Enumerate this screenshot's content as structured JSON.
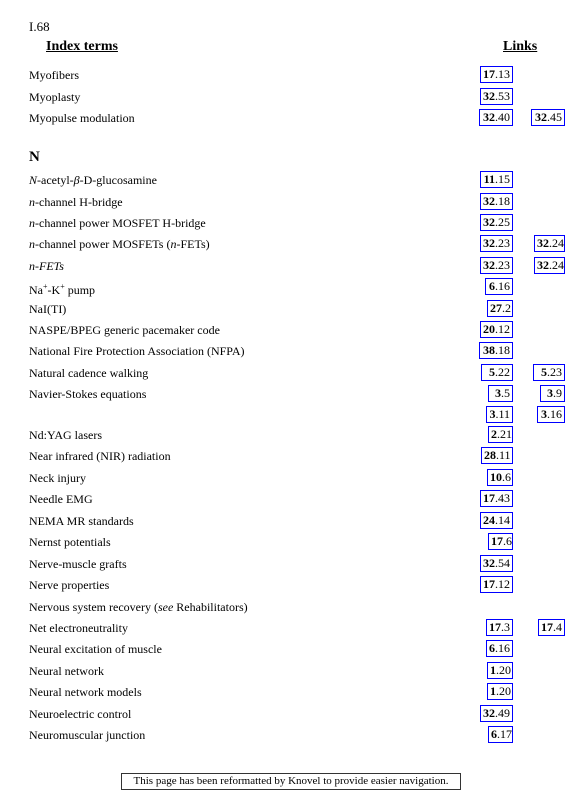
{
  "page_number": "I.68",
  "header": {
    "terms": "Index terms",
    "links": "Links"
  },
  "section": "N",
  "entries": [
    {
      "term": "Myofibers",
      "links": [
        [
          "17",
          ".13"
        ]
      ]
    },
    {
      "term": "Myoplasty",
      "links": [
        [
          "32",
          ".53"
        ]
      ]
    },
    {
      "term": "Myopulse modulation",
      "links": [
        [
          "32",
          ".40"
        ],
        [
          "32",
          ".45"
        ]
      ]
    },
    {
      "term": "N-acetyl-β-D-glucosamine",
      "links": [
        [
          "11",
          ".15"
        ]
      ]
    },
    {
      "term": "n-channel H-bridge",
      "links": [
        [
          "32",
          ".18"
        ]
      ]
    },
    {
      "term": "n-channel power MOSFET H-bridge",
      "links": [
        [
          "32",
          ".25"
        ]
      ]
    },
    {
      "term": "n-channel power MOSFETs (n-FETs)",
      "links": [
        [
          "32",
          ".23"
        ],
        [
          "32",
          ".24"
        ]
      ]
    },
    {
      "term": "n-FETs",
      "links": [
        [
          "32",
          ".23"
        ],
        [
          "32",
          ".24"
        ]
      ]
    },
    {
      "term": "Na+-K+ pump",
      "links": [
        [
          "6",
          ".16"
        ]
      ]
    },
    {
      "term": "NaI(TI)",
      "links": [
        [
          "27",
          ".2"
        ]
      ]
    },
    {
      "term": "NASPE/BPEG generic pacemaker code",
      "links": [
        [
          "20",
          ".12"
        ]
      ]
    },
    {
      "term": "National Fire Protection Association (NFPA)",
      "links": [
        [
          "38",
          ".18"
        ]
      ]
    },
    {
      "term": "Natural cadence walking",
      "links": [
        [
          "5",
          ".22"
        ],
        [
          "5",
          ".23"
        ]
      ]
    },
    {
      "term": "Navier-Stokes equations",
      "links": [
        [
          "3",
          ".5"
        ],
        [
          "3",
          ".9"
        ]
      ]
    },
    {
      "term": "",
      "links": [
        [
          "3",
          ".11"
        ],
        [
          "3",
          ".16"
        ]
      ]
    },
    {
      "term": "Nd:YAG lasers",
      "links": [
        [
          "2",
          ".21"
        ]
      ]
    },
    {
      "term": "Near infrared (NIR) radiation",
      "links": [
        [
          "28",
          ".11"
        ]
      ]
    },
    {
      "term": "Neck injury",
      "links": [
        [
          "10",
          ".6"
        ]
      ]
    },
    {
      "term": "Needle EMG",
      "links": [
        [
          "17",
          ".43"
        ]
      ]
    },
    {
      "term": "NEMA MR standards",
      "links": [
        [
          "24",
          ".14"
        ]
      ]
    },
    {
      "term": "Nernst potentials",
      "links": [
        [
          "17",
          ".6"
        ]
      ]
    },
    {
      "term": "Nerve-muscle grafts",
      "links": [
        [
          "32",
          ".54"
        ]
      ]
    },
    {
      "term": "Nerve properties",
      "links": [
        [
          "17",
          ".12"
        ]
      ]
    },
    {
      "term": "Nervous system recovery (see Rehabilitators)",
      "links": []
    },
    {
      "term": "Net electroneutrality",
      "links": [
        [
          "17",
          ".3"
        ],
        [
          "17",
          ".4"
        ]
      ]
    },
    {
      "term": "Neural excitation of muscle",
      "links": [
        [
          "6",
          ".16"
        ]
      ]
    },
    {
      "term": "Neural network",
      "links": [
        [
          "1",
          ".20"
        ]
      ]
    },
    {
      "term": "Neural network models",
      "links": [
        [
          "1",
          ".20"
        ]
      ]
    },
    {
      "term": "Neuroelectric control",
      "links": [
        [
          "32",
          ".49"
        ]
      ]
    },
    {
      "term": "Neuromuscular junction",
      "links": [
        [
          "6",
          ".17"
        ]
      ]
    }
  ],
  "footer": "This page has been reformatted by Knovel to provide easier navigation."
}
